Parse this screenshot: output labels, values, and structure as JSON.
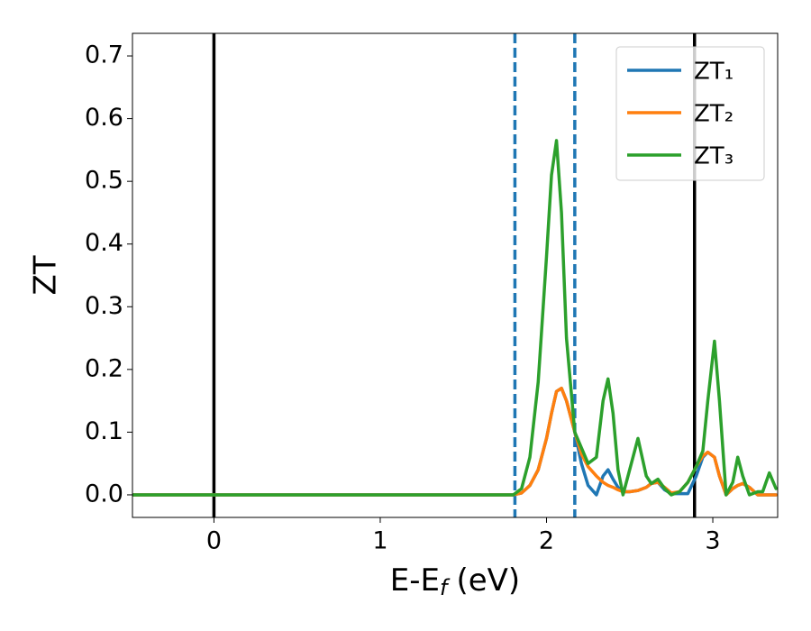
{
  "chart_data": {
    "type": "line",
    "y_label": "ZT",
    "x_label": {
      "text": "E-E",
      "subscript": "f",
      "unit": "(eV)"
    },
    "x": [
      -0.49,
      1.8,
      1.85,
      1.9,
      1.95,
      2.0,
      2.03,
      2.06,
      2.09,
      2.12,
      2.17,
      2.21,
      2.25,
      2.3,
      2.34,
      2.37,
      2.4,
      2.43,
      2.46,
      2.5,
      2.55,
      2.6,
      2.63,
      2.67,
      2.71,
      2.75,
      2.8,
      2.85,
      2.9,
      2.94,
      2.97,
      3.01,
      3.04,
      3.08,
      3.12,
      3.15,
      3.18,
      3.22,
      3.27,
      3.3,
      3.34,
      3.38
    ],
    "series": [
      {
        "name": "ZT₁",
        "color": "#1f77b4",
        "values": [
          0,
          0,
          0.003,
          0.015,
          0.04,
          0.09,
          0.13,
          0.165,
          0.17,
          0.15,
          0.1,
          0.05,
          0.015,
          0.0,
          0.03,
          0.04,
          0.025,
          0.012,
          0.005,
          0.005,
          0.007,
          0.012,
          0.018,
          0.02,
          0.008,
          0.002,
          0.002,
          0.002,
          0.03,
          0.06,
          0.068,
          0.06,
          0.03,
          0.0,
          0.01,
          0.015,
          0.018,
          0.012,
          0,
          0,
          0,
          0
        ]
      },
      {
        "name": "ZT₂",
        "color": "#ff7f0e",
        "values": [
          0,
          0,
          0.003,
          0.015,
          0.04,
          0.09,
          0.13,
          0.165,
          0.17,
          0.15,
          0.1,
          0.065,
          0.045,
          0.03,
          0.02,
          0.015,
          0.012,
          0.008,
          0.005,
          0.005,
          0.007,
          0.012,
          0.018,
          0.02,
          0.012,
          0.003,
          0.005,
          0.02,
          0.045,
          0.062,
          0.068,
          0.06,
          0.03,
          0.0,
          0.01,
          0.015,
          0.018,
          0.012,
          0,
          0,
          0,
          0
        ]
      },
      {
        "name": "ZT₃",
        "color": "#2ca02c",
        "values": [
          0,
          0,
          0.01,
          0.06,
          0.18,
          0.38,
          0.51,
          0.565,
          0.45,
          0.25,
          0.1,
          0.075,
          0.05,
          0.06,
          0.15,
          0.185,
          0.13,
          0.04,
          0.0,
          0.04,
          0.09,
          0.03,
          0.018,
          0.025,
          0.01,
          0.0,
          0.005,
          0.02,
          0.045,
          0.07,
          0.15,
          0.245,
          0.15,
          0.0,
          0.02,
          0.06,
          0.03,
          0.0,
          0.005,
          0.005,
          0.035,
          0.01
        ]
      }
    ],
    "vlines": [
      {
        "x": 0,
        "color": "#000000",
        "style": "solid"
      },
      {
        "x": 2.89,
        "color": "#000000",
        "style": "solid"
      },
      {
        "x": 1.81,
        "color": "#1f77b4",
        "style": "dashed"
      },
      {
        "x": 2.17,
        "color": "#1f77b4",
        "style": "dashed"
      }
    ],
    "xlim": [
      -0.49,
      3.39
    ],
    "ylim": [
      -0.036,
      0.736
    ],
    "xticks": [
      0,
      1,
      2,
      3
    ],
    "yticks": [
      {
        "value": 0,
        "label": "0.0"
      },
      {
        "value": 0.1,
        "label": "0.1"
      },
      {
        "value": 0.2,
        "label": "0.2"
      },
      {
        "value": 0.3,
        "label": "0.3"
      },
      {
        "value": 0.4,
        "label": "0.4"
      },
      {
        "value": 0.5,
        "label": "0.5"
      },
      {
        "value": 0.6,
        "label": "0.6"
      },
      {
        "value": 0.7,
        "label": "0.7"
      }
    ],
    "legend": "upper right",
    "grid": false
  }
}
